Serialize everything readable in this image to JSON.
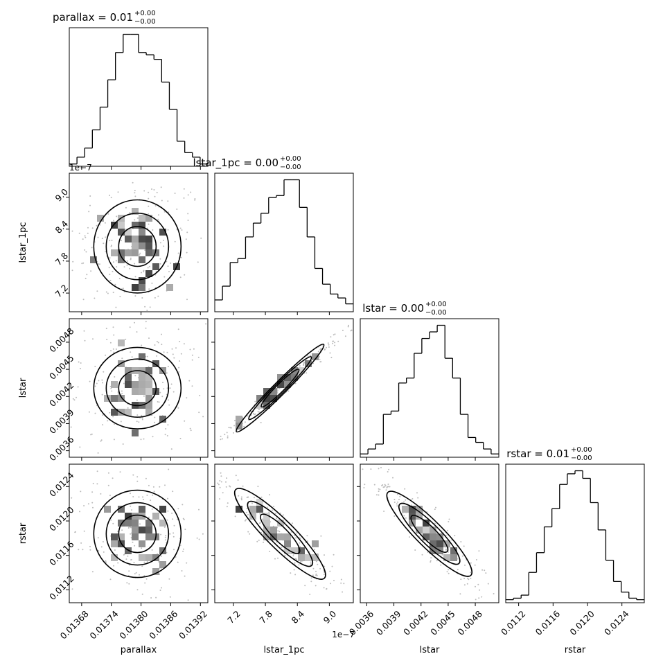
{
  "chart_data": {
    "type": "corner",
    "parameters": [
      "parallax",
      "lstar_1pc",
      "lstar",
      "rstar"
    ],
    "titles": [
      {
        "name": "parallax",
        "value": "0.01",
        "upper": "+0.00",
        "lower": "−0.00"
      },
      {
        "name": "lstar_1pc",
        "value": "0.00",
        "upper": "+0.00",
        "lower": "−0.00"
      },
      {
        "name": "lstar",
        "value": "0.00",
        "upper": "+0.00",
        "lower": "−0.00"
      },
      {
        "name": "rstar",
        "value": "0.01",
        "upper": "+0.00",
        "lower": "−0.00"
      }
    ],
    "ranges": [
      [
        0.013655,
        0.013935
      ],
      [
        6.85e-07,
        9.45e-07
      ],
      [
        0.003528,
        0.00506
      ],
      [
        0.01105,
        0.01266
      ]
    ],
    "ticks": [
      {
        "values": [
          0.01368,
          0.01374,
          0.0138,
          0.01386,
          0.01392
        ],
        "labels": [
          "0.01368",
          "0.01374",
          "0.01380",
          "0.01386",
          "0.01392"
        ]
      },
      {
        "values": [
          7.2e-07,
          7.8e-07,
          8.4e-07,
          9e-07
        ],
        "labels": [
          "7.2",
          "7.8",
          "8.4",
          "9.0"
        ]
      },
      {
        "values": [
          0.0036,
          0.0039,
          0.0042,
          0.0045,
          0.0048
        ],
        "labels": [
          "0.0036",
          "0.0039",
          "0.0042",
          "0.0045",
          "0.0048"
        ]
      },
      {
        "values": [
          0.0112,
          0.0116,
          0.012,
          0.0124
        ],
        "labels": [
          "0.0112",
          "0.0116",
          "0.0120",
          "0.0124"
        ]
      }
    ],
    "offset_text": "1e−7",
    "histograms": [
      [
        1,
        4,
        8,
        16,
        26,
        38,
        50,
        58,
        58,
        50,
        49,
        47,
        37,
        25,
        11,
        6,
        4,
        1
      ],
      [
        6,
        13,
        25,
        27,
        38,
        45,
        50,
        58,
        59,
        67,
        67,
        53,
        38,
        22,
        14,
        9,
        7,
        4
      ],
      [
        2,
        5,
        8,
        26,
        28,
        45,
        48,
        63,
        72,
        76,
        80,
        60,
        48,
        26,
        12,
        9,
        5,
        2
      ],
      [
        2,
        3,
        5,
        20,
        33,
        50,
        62,
        78,
        85,
        87,
        82,
        66,
        48,
        28,
        14,
        7,
        3,
        2
      ]
    ],
    "correlations": {
      "1-0": 0.0,
      "2-0": 0.0,
      "3-0": 0.0,
      "2-1": 0.99,
      "3-1": -0.93,
      "3-2": -0.93
    },
    "grid": false
  }
}
